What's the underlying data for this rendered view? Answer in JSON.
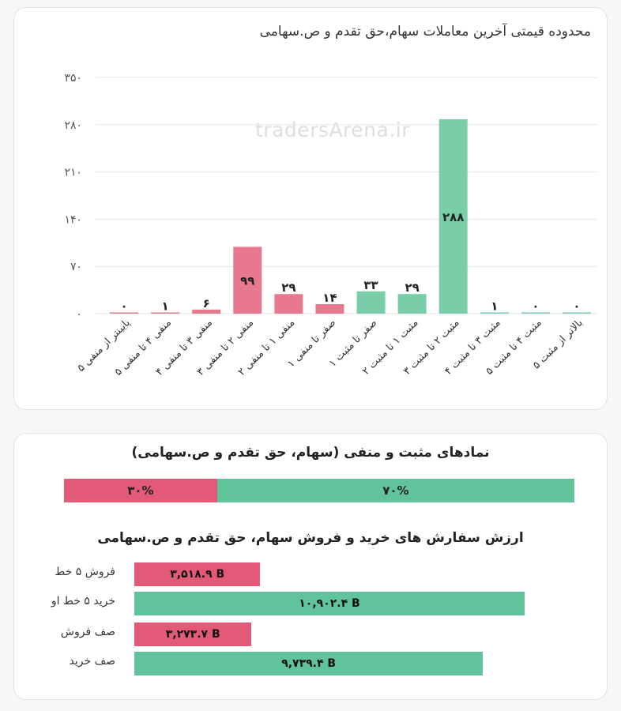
{
  "colors": {
    "negative": "#e8788e",
    "positive": "#79cda9",
    "negative_strong": "#e35a78",
    "positive_strong": "#61c39c",
    "grid": "#e6e6e6"
  },
  "chart_data": [
    {
      "type": "bar",
      "title": "محدوده قیمتی آخرین معاملات سهام،حق تقدم و ص.سهامی",
      "watermark": "tradersArena.ir",
      "categories": [
        "پایینتر از منفی ۵",
        "منفی ۴ تا منفی ۵",
        "منفی ۳ تا منفی ۴",
        "منفی ۲ تا منفی ۳",
        "منفی ۱ تا منفی ۲",
        "صفر تا منفی ۱",
        "صفر تا مثبت ۱",
        "مثبت ۱ تا مثبت ۲",
        "مثبت ۲ تا مثبت ۳",
        "مثبت ۳ تا مثبت ۴",
        "مثبت ۴ تا مثبت ۵",
        "بالاتر از مثبت ۵"
      ],
      "values": [
        0,
        1,
        6,
        99,
        29,
        14,
        33,
        29,
        288,
        1,
        0,
        0
      ],
      "value_labels": [
        "۰",
        "۱",
        "۶",
        "۹۹",
        "۲۹",
        "۱۴",
        "۳۳",
        "۲۹",
        "۲۸۸",
        "۱",
        "۰",
        "۰"
      ],
      "colors": [
        "#e8788e",
        "#e8788e",
        "#e8788e",
        "#e8788e",
        "#e8788e",
        "#e8788e",
        "#79cda9",
        "#79cda9",
        "#79cda9",
        "#79cda9",
        "#79cda9",
        "#79cda9"
      ],
      "yticks": [
        0,
        70,
        140,
        210,
        280,
        350
      ],
      "ytick_labels": [
        "۰",
        "۷۰",
        "۱۴۰",
        "۲۱۰",
        "۲۸۰",
        "۳۵۰"
      ],
      "ylim": [
        0,
        350
      ],
      "grid": true,
      "legend": "none"
    },
    {
      "type": "bar",
      "orientation": "horizontal-stacked",
      "title": "نمادهای مثبت و منفی (سهام، حق تقدم و ص.سهامی)",
      "series": [
        {
          "value": 30,
          "label": "۳۰%",
          "color": "#e35a78"
        },
        {
          "value": 70,
          "label": "۷۰%",
          "color": "#61c39c"
        }
      ],
      "xlim": [
        0,
        100
      ]
    },
    {
      "type": "bar",
      "orientation": "horizontal",
      "title": "ارزش سفارش های خرید و فروش سهام، حق تقدم و ص.سهامی",
      "categories": [
        "فروش ۵ خط",
        "خرید ۵ خط او",
        "صف فروش",
        "صف خرید"
      ],
      "values": [
        3518.9,
        10902.4,
        3273.7,
        9739.4
      ],
      "value_labels": [
        "۳,۵۱۸.۹ B",
        "۱۰,۹۰۲.۴ B",
        "۳,۲۷۳.۷ B",
        "۹,۷۳۹.۴ B"
      ],
      "colors": [
        "#e35a78",
        "#61c39c",
        "#e35a78",
        "#61c39c"
      ],
      "xlim": [
        0,
        10902.4
      ]
    }
  ]
}
